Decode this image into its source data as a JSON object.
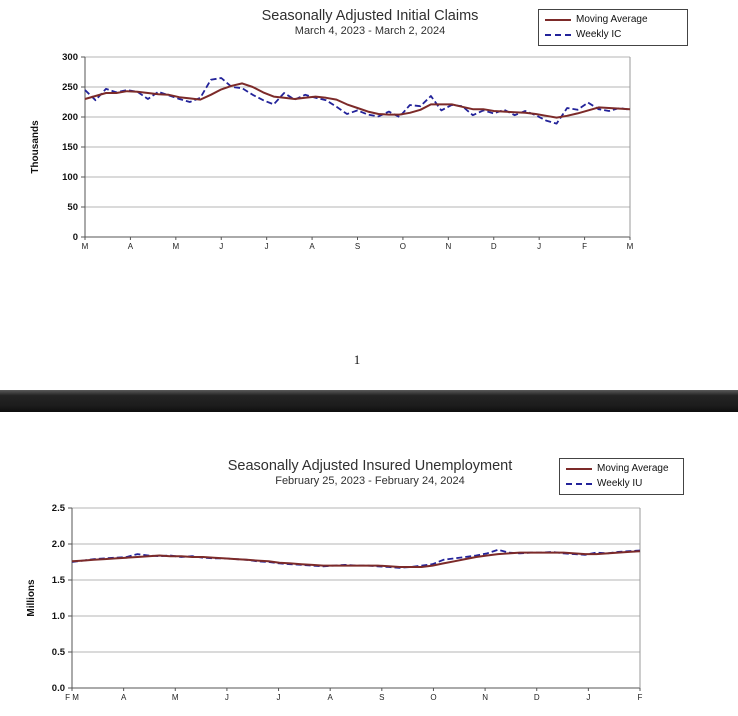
{
  "document": {
    "page_number": "1"
  },
  "chart_data": [
    {
      "type": "line",
      "title": "Seasonally Adjusted Initial Claims",
      "subtitle": "March 4, 2023 - March 2, 2024",
      "ylabel": "Thousands",
      "ylim": [
        0,
        300
      ],
      "yticks": [
        0,
        50,
        100,
        150,
        200,
        250,
        300
      ],
      "ytick_decimals": 0,
      "xticks": [
        "M",
        "A",
        "M",
        "J",
        "J",
        "A",
        "S",
        "O",
        "N",
        "D",
        "J",
        "F",
        "M"
      ],
      "grid": true,
      "legend_position": "top-right",
      "series": [
        {
          "name": "Moving Average",
          "style": "solid",
          "color": "#7c2a29",
          "values": [
            230,
            235,
            240,
            240,
            243,
            242,
            240,
            238,
            237,
            233,
            231,
            229,
            237,
            246,
            252,
            256,
            250,
            241,
            234,
            232,
            230,
            232,
            234,
            232,
            229,
            221,
            215,
            209,
            205,
            204,
            204,
            207,
            212,
            221,
            221,
            221,
            217,
            213,
            213,
            210,
            209,
            208,
            207,
            205,
            202,
            199,
            202,
            206,
            211,
            216,
            215,
            214,
            213
          ]
        },
        {
          "name": "Weekly IC",
          "style": "dashed",
          "color": "#23239a",
          "values": [
            245,
            228,
            247,
            241,
            245,
            242,
            230,
            242,
            236,
            230,
            225,
            232,
            262,
            265,
            250,
            248,
            237,
            228,
            221,
            240,
            229,
            237,
            232,
            228,
            217,
            205,
            211,
            204,
            201,
            209,
            200,
            220,
            218,
            235,
            211,
            220,
            218,
            203,
            211,
            206,
            212,
            203,
            210,
            203,
            194,
            189,
            215,
            212,
            224,
            213,
            210,
            215,
            212
          ]
        }
      ]
    },
    {
      "type": "line",
      "title": "Seasonally Adjusted Insured Unemployment",
      "subtitle": "February 25, 2023 - February 24, 2024",
      "ylabel": "Millions",
      "ylim": [
        0,
        2.5
      ],
      "yticks": [
        0,
        0.5,
        1.0,
        1.5,
        2.0,
        2.5
      ],
      "ytick_decimals": 1,
      "xticks": [
        "F M",
        "A",
        "M",
        "J",
        "J",
        "A",
        "S",
        "O",
        "N",
        "D",
        "J",
        "F"
      ],
      "grid": true,
      "legend_position": "top-right",
      "series": [
        {
          "name": "Moving Average",
          "style": "solid",
          "color": "#7c2a29",
          "values": [
            1.76,
            1.77,
            1.78,
            1.79,
            1.8,
            1.81,
            1.82,
            1.83,
            1.84,
            1.83,
            1.83,
            1.82,
            1.82,
            1.81,
            1.8,
            1.79,
            1.78,
            1.77,
            1.76,
            1.74,
            1.73,
            1.72,
            1.71,
            1.7,
            1.7,
            1.7,
            1.7,
            1.7,
            1.7,
            1.69,
            1.68,
            1.68,
            1.68,
            1.7,
            1.73,
            1.76,
            1.79,
            1.82,
            1.84,
            1.86,
            1.87,
            1.88,
            1.88,
            1.88,
            1.88,
            1.88,
            1.87,
            1.86,
            1.86,
            1.87,
            1.88,
            1.89,
            1.9
          ]
        },
        {
          "name": "Weekly IU",
          "style": "dashed",
          "color": "#23239a",
          "values": [
            1.75,
            1.77,
            1.79,
            1.8,
            1.81,
            1.82,
            1.86,
            1.84,
            1.83,
            1.84,
            1.82,
            1.83,
            1.81,
            1.8,
            1.8,
            1.79,
            1.78,
            1.76,
            1.75,
            1.73,
            1.72,
            1.71,
            1.7,
            1.69,
            1.7,
            1.71,
            1.7,
            1.7,
            1.69,
            1.68,
            1.67,
            1.68,
            1.7,
            1.72,
            1.78,
            1.8,
            1.82,
            1.84,
            1.87,
            1.92,
            1.88,
            1.87,
            1.88,
            1.88,
            1.89,
            1.87,
            1.86,
            1.85,
            1.88,
            1.87,
            1.89,
            1.9,
            1.91
          ]
        }
      ]
    }
  ]
}
